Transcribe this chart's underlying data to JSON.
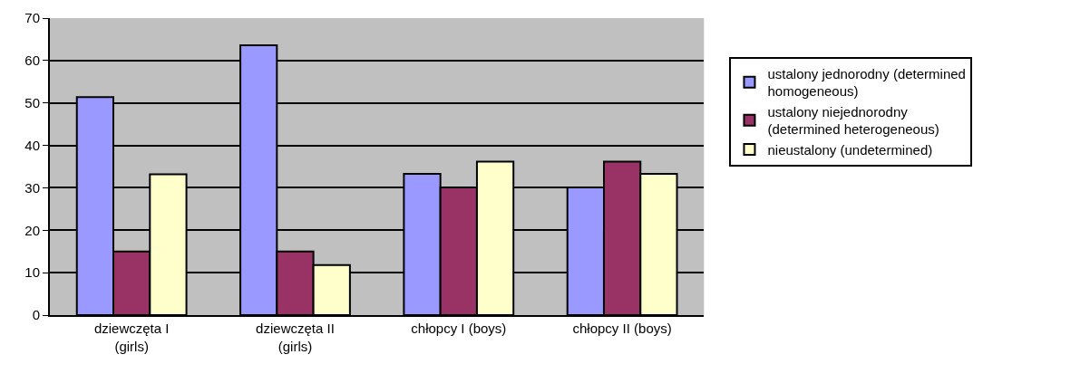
{
  "chart_data": {
    "type": "bar",
    "categories": [
      "dziewczęta I (girls)",
      "dziewczęta II (girls)",
      "chłopcy I (boys)",
      "chłopcy II (boys)"
    ],
    "series": [
      {
        "name": "ustalony jednorodny (determined homogeneous)",
        "color": "#9999ff",
        "values": [
          51.4,
          63.6,
          33.3,
          30.1
        ]
      },
      {
        "name": "ustalony niejednorodny (determined heterogeneous)",
        "color": "#993366",
        "values": [
          15,
          15,
          30.1,
          36.2
        ]
      },
      {
        "name": "nieustalony (undetermined)",
        "color": "#ffffcc",
        "values": [
          33.2,
          11.8,
          36.2,
          33.3
        ]
      }
    ],
    "ylim": [
      0,
      70
    ],
    "yticks": [
      0,
      10,
      20,
      30,
      40,
      50,
      60,
      70
    ],
    "grid": "y",
    "legend": "right"
  }
}
